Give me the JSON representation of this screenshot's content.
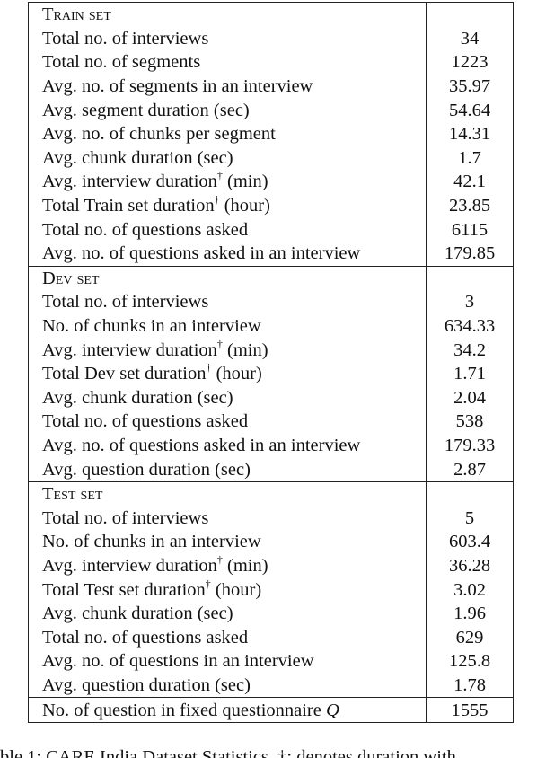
{
  "sections": [
    {
      "title": "Train set",
      "rows": [
        {
          "label": "Total no. of interviews",
          "value": 34
        },
        {
          "label": "Total no. of segments",
          "value": 1223
        },
        {
          "label": "Avg. no. of segments in an interview",
          "value": 35.97
        },
        {
          "label": "Avg. segment duration (sec)",
          "value": 54.64
        },
        {
          "label": "Avg. no. of chunks per segment",
          "value": 14.31
        },
        {
          "label": "Avg. chunk duration (sec)",
          "value": 1.7
        },
        {
          "label": "Avg. interview duration",
          "sup": "†",
          "after": "(min)",
          "value": 42.1
        },
        {
          "label": "Total Train set duration",
          "sup": "†",
          "after": "(hour)",
          "value": 23.85
        },
        {
          "label": "Total no. of questions asked",
          "value": 6115
        },
        {
          "label": "Avg. no. of questions asked in an interview",
          "value": 179.85
        }
      ]
    },
    {
      "title": "Dev set",
      "rows": [
        {
          "label": "Total no. of interviews",
          "value": 3
        },
        {
          "label": "No. of chunks in an interview",
          "value": 634.33
        },
        {
          "label": "Avg. interview duration",
          "sup": "†",
          "after": "(min)",
          "value": 34.2
        },
        {
          "label": "Total Dev set duration",
          "sup": "†",
          "after": "(hour)",
          "value": 1.71
        },
        {
          "label": "Avg. chunk duration (sec)",
          "value": 2.04
        },
        {
          "label": "Total no. of questions asked",
          "value": 538
        },
        {
          "label": "Avg. no. of questions asked in an interview",
          "value": 179.33
        },
        {
          "label": "Avg. question duration (sec)",
          "value": 2.87
        }
      ]
    },
    {
      "title": "Test set",
      "rows": [
        {
          "label": "Total no. of interviews",
          "value": 5
        },
        {
          "label": "No. of chunks in an interview",
          "value": 603.4
        },
        {
          "label": "Avg. interview duration",
          "sup": "†",
          "after": "(min)",
          "value": 36.28
        },
        {
          "label": "Total Test set duration",
          "sup": "†",
          "after": "(hour)",
          "value": 3.02
        },
        {
          "label": "Avg. chunk duration (sec)",
          "value": 1.96
        },
        {
          "label": "Total no. of questions asked",
          "value": 629
        },
        {
          "label": "Avg. no. of questions in an interview",
          "value": 125.8
        },
        {
          "label": "Avg. question duration (sec)",
          "value": 1.78
        }
      ]
    }
  ],
  "footer": {
    "label": "No. of question in fixed questionnaire",
    "math": "Q",
    "value": 1555
  },
  "caption": "ble 1: CARE India Dataset Statistics. †: denotes duration with"
}
